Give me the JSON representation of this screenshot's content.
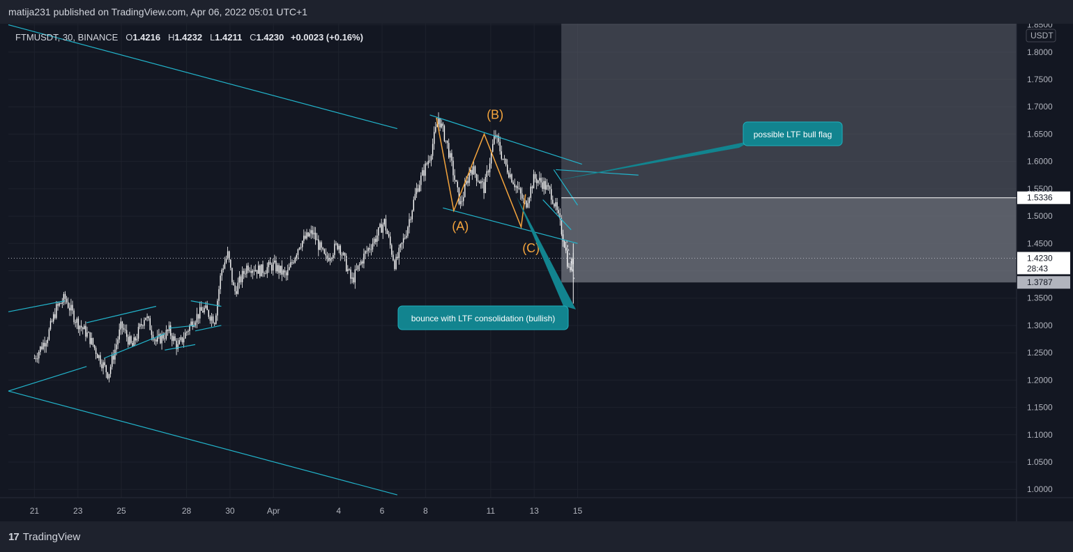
{
  "header": {
    "publisher_line": "matija231 published on TradingView.com, Apr 06, 2022 05:01 UTC+1"
  },
  "legend": {
    "symbol": "FTMUSDT, 30, BINANCE",
    "open_label": "O",
    "open": "1.4216",
    "high_label": "H",
    "high": "1.4232",
    "low_label": "L",
    "low": "1.4211",
    "close_label": "C",
    "close": "1.4230",
    "change": "+0.0023 (+0.16%)"
  },
  "footer": {
    "brand": "TradingView",
    "logo_mark": "17"
  },
  "colors": {
    "background": "#131722",
    "grid": "#1e222d",
    "candle": "#ffffff",
    "trendline": "#22b5cc",
    "wave": "#f5a53d",
    "callout": "#12848f",
    "zone": "#5d606b"
  },
  "chart_data": {
    "type": "candlestick",
    "symbol": "FTMUSDT",
    "timeframe": "30",
    "exchange": "BINANCE",
    "currency_label": "USDT",
    "ylim": [
      0.985,
      1.852
    ],
    "y_ticks": [
      "1.8500",
      "1.8000",
      "1.7500",
      "1.7000",
      "1.6500",
      "1.6000",
      "1.5500",
      "1.5000",
      "1.4500",
      "1.4000",
      "1.3500",
      "1.3000",
      "1.2500",
      "1.2000",
      "1.1500",
      "1.1000",
      "1.0500",
      "1.0000"
    ],
    "x_ticks": [
      "21",
      "23",
      "25",
      "28",
      "30",
      "Apr",
      "4",
      "6",
      "8",
      "11",
      "13",
      "15"
    ],
    "price_path": [
      {
        "x": 0.0,
        "y": 1.24
      },
      {
        "x": 0.6,
        "y": 1.28
      },
      {
        "x": 1.0,
        "y": 1.33
      },
      {
        "x": 1.4,
        "y": 1.35
      },
      {
        "x": 1.9,
        "y": 1.31
      },
      {
        "x": 2.5,
        "y": 1.28
      },
      {
        "x": 3.0,
        "y": 1.24
      },
      {
        "x": 3.4,
        "y": 1.21
      },
      {
        "x": 4.0,
        "y": 1.3
      },
      {
        "x": 4.5,
        "y": 1.26
      },
      {
        "x": 5.1,
        "y": 1.32
      },
      {
        "x": 5.6,
        "y": 1.27
      },
      {
        "x": 6.2,
        "y": 1.29
      },
      {
        "x": 6.6,
        "y": 1.26
      },
      {
        "x": 7.3,
        "y": 1.31
      },
      {
        "x": 7.8,
        "y": 1.33
      },
      {
        "x": 8.3,
        "y": 1.31
      },
      {
        "x": 8.6,
        "y": 1.4
      },
      {
        "x": 8.9,
        "y": 1.43
      },
      {
        "x": 9.2,
        "y": 1.36
      },
      {
        "x": 9.8,
        "y": 1.41
      },
      {
        "x": 10.4,
        "y": 1.4
      },
      {
        "x": 11.0,
        "y": 1.41
      },
      {
        "x": 11.6,
        "y": 1.39
      },
      {
        "x": 12.2,
        "y": 1.45
      },
      {
        "x": 12.8,
        "y": 1.47
      },
      {
        "x": 13.4,
        "y": 1.42
      },
      {
        "x": 14.0,
        "y": 1.45
      },
      {
        "x": 14.6,
        "y": 1.38
      },
      {
        "x": 15.2,
        "y": 1.43
      },
      {
        "x": 15.7,
        "y": 1.46
      },
      {
        "x": 16.1,
        "y": 1.49
      },
      {
        "x": 16.6,
        "y": 1.41
      },
      {
        "x": 17.1,
        "y": 1.47
      },
      {
        "x": 17.6,
        "y": 1.55
      },
      {
        "x": 18.2,
        "y": 1.61
      },
      {
        "x": 18.6,
        "y": 1.68
      },
      {
        "x": 19.0,
        "y": 1.63
      },
      {
        "x": 19.6,
        "y": 1.52
      },
      {
        "x": 20.1,
        "y": 1.59
      },
      {
        "x": 20.7,
        "y": 1.55
      },
      {
        "x": 21.2,
        "y": 1.65
      },
      {
        "x": 21.6,
        "y": 1.6
      },
      {
        "x": 22.1,
        "y": 1.56
      },
      {
        "x": 22.6,
        "y": 1.52
      },
      {
        "x": 23.0,
        "y": 1.57
      },
      {
        "x": 23.4,
        "y": 1.56
      },
      {
        "x": 23.8,
        "y": 1.54
      },
      {
        "x": 24.1,
        "y": 1.5
      },
      {
        "x": 24.4,
        "y": 1.45
      },
      {
        "x": 24.6,
        "y": 1.4
      },
      {
        "x": 24.8,
        "y": 1.42
      }
    ],
    "annotations": [
      {
        "label": "(A)",
        "x": 19.6,
        "y": 1.52
      },
      {
        "label": "(B)",
        "x": 21.2,
        "y": 1.65
      },
      {
        "label": "(C)",
        "x": 22.6,
        "y": 1.48
      },
      {
        "label": "possible LTF bull flag"
      },
      {
        "label": "bounce with LTF consolidation (bullish)"
      }
    ],
    "price_labels": [
      {
        "value": "1.5336",
        "style": "white"
      },
      {
        "value": "1.4230",
        "countdown": "28:43",
        "style": "current"
      },
      {
        "value": "1.3787",
        "style": "grey"
      }
    ]
  }
}
